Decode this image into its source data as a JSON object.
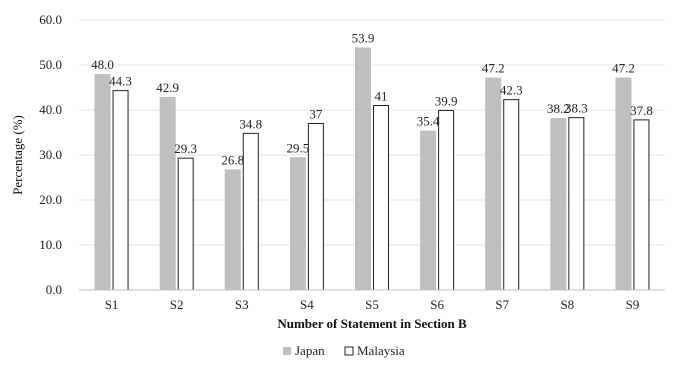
{
  "chart_data": {
    "type": "bar",
    "xlabel": "Number of Statement in Section B",
    "ylabel": "Percentage (%)",
    "ylim": [
      0,
      60
    ],
    "yticks": [
      "0.0",
      "10.0",
      "20.0",
      "30.0",
      "40.0",
      "50.0",
      "60.0"
    ],
    "grid": true,
    "legend_position": "bottom",
    "categories": [
      "S1",
      "S2",
      "S3",
      "S4",
      "S5",
      "S6",
      "S7",
      "S8",
      "S9"
    ],
    "series": [
      {
        "name": "Japan",
        "color": "#bfbfbf",
        "values": [
          48.0,
          42.9,
          26.8,
          29.5,
          53.9,
          35.4,
          47.2,
          38.2,
          47.2
        ],
        "labels": [
          "48.0",
          "42.9",
          "26.8",
          "29.5",
          "53.9",
          "35.4",
          "47.2",
          "38.2",
          "47.2"
        ]
      },
      {
        "name": "Malaysia",
        "color": "#ffffff",
        "values": [
          44.3,
          29.3,
          34.8,
          37,
          41,
          39.9,
          42.3,
          38.3,
          37.8
        ],
        "labels": [
          "44.3",
          "29.3",
          "34.8",
          "37",
          "41",
          "39.9",
          "42.3",
          "38.3",
          "37.8"
        ]
      }
    ]
  }
}
